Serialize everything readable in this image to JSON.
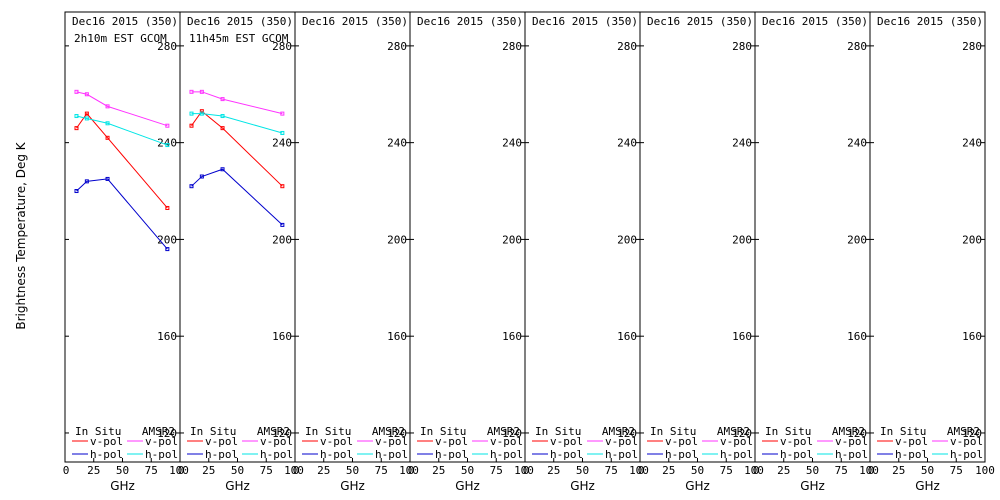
{
  "chart_data": {
    "type": "line",
    "ylabel": "Brightness Temperature, Deg K",
    "xlabel": "GHz",
    "ylim": [
      108,
      294
    ],
    "xlim": [
      0,
      100
    ],
    "yticks": [
      120,
      160,
      200,
      240,
      280
    ],
    "xticks": [
      0,
      25,
      50,
      75,
      100
    ],
    "legend": {
      "insitu_header": "In Situ",
      "amsr2_header": "AMSR2",
      "vpol": "v-pol",
      "hpol": "h-pol"
    },
    "colors": {
      "insitu_v": "#ff0000",
      "insitu_h": "#0000cc",
      "amsr2_v": "#ff33ff",
      "amsr2_h": "#00e5e5"
    },
    "panels": [
      {
        "title": "Dec16 2015 (350)",
        "subtitle": "2h10m EST GCOM",
        "series": [
          {
            "name": "In Situ v-pol",
            "x": [
              10,
              19,
              37,
              89
            ],
            "y": [
              246,
              252,
              242,
              213
            ]
          },
          {
            "name": "In Situ h-pol",
            "x": [
              10,
              19,
              37,
              89
            ],
            "y": [
              220,
              224,
              225,
              196
            ]
          },
          {
            "name": "AMSR2 v-pol",
            "x": [
              10,
              19,
              37,
              89
            ],
            "y": [
              261,
              260,
              255,
              247
            ]
          },
          {
            "name": "AMSR2 h-pol",
            "x": [
              10,
              19,
              37,
              89
            ],
            "y": [
              251,
              250,
              248,
              239
            ]
          }
        ]
      },
      {
        "title": "Dec16 2015 (350)",
        "subtitle": "11h45m EST GCOM",
        "series": [
          {
            "name": "In Situ v-pol",
            "x": [
              10,
              19,
              37,
              89
            ],
            "y": [
              247,
              253,
              246,
              222
            ]
          },
          {
            "name": "In Situ h-pol",
            "x": [
              10,
              19,
              37,
              89
            ],
            "y": [
              222,
              226,
              229,
              206
            ]
          },
          {
            "name": "AMSR2 v-pol",
            "x": [
              10,
              19,
              37,
              89
            ],
            "y": [
              261,
              261,
              258,
              252
            ]
          },
          {
            "name": "AMSR2 h-pol",
            "x": [
              10,
              19,
              37,
              89
            ],
            "y": [
              252,
              252,
              251,
              244
            ]
          }
        ]
      },
      {
        "title": "Dec16 2015 (350)",
        "subtitle": "",
        "series": []
      },
      {
        "title": "Dec16 2015 (350)",
        "subtitle": "",
        "series": []
      },
      {
        "title": "Dec16 2015 (350)",
        "subtitle": "",
        "series": []
      },
      {
        "title": "Dec16 2015 (350)",
        "subtitle": "",
        "series": []
      },
      {
        "title": "Dec16 2015 (350)",
        "subtitle": "",
        "series": []
      },
      {
        "title": "Dec16 2015 (350)",
        "subtitle": "",
        "series": []
      }
    ]
  }
}
